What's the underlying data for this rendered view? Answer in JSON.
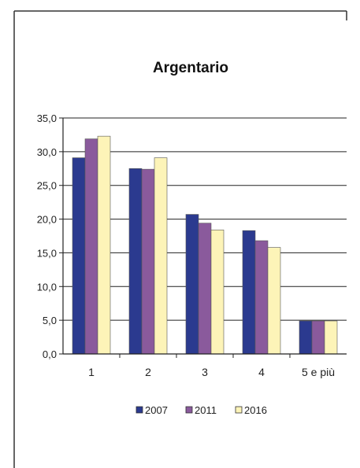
{
  "chart_data": {
    "type": "bar",
    "title": "Argentario",
    "categories": [
      "1",
      "2",
      "3",
      "4",
      "5 e più"
    ],
    "series": [
      {
        "name": "2007",
        "values": [
          29.1,
          27.5,
          20.7,
          18.3,
          4.9
        ],
        "color": "#2b3a8f"
      },
      {
        "name": "2011",
        "values": [
          31.9,
          27.4,
          19.4,
          16.8,
          4.9
        ],
        "color": "#8a5a9c"
      },
      {
        "name": "2016",
        "values": [
          32.3,
          29.1,
          18.4,
          15.8,
          4.9
        ],
        "color": "#fdf4b8"
      }
    ],
    "ylim": [
      0,
      35
    ],
    "yticks": [
      "0,0",
      "5,0",
      "10,0",
      "15,0",
      "20,0",
      "25,0",
      "30,0",
      "35,0"
    ],
    "xlabel": "",
    "ylabel": "",
    "grid": true,
    "legend": "bottom"
  }
}
